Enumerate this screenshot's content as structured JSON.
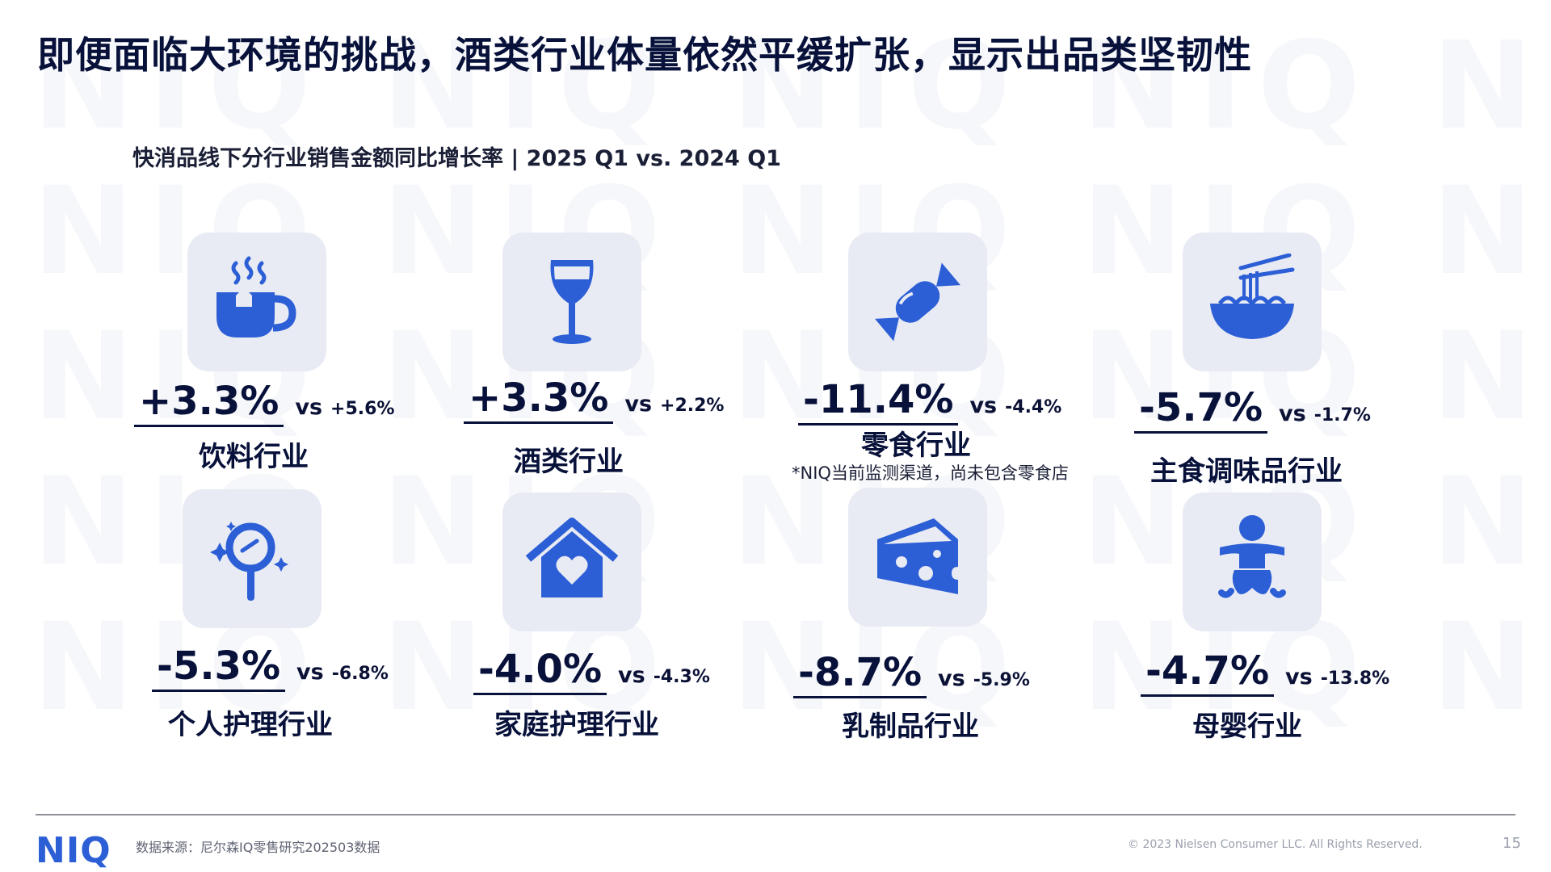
{
  "watermark": {
    "text": "NIQ NIQ NIQ NIQ NIQ"
  },
  "title": "即便面临大环境的挑战，酒类行业体量依然平缓扩张，显示出品类坚韧性",
  "subtitle": "快消品线下分行业销售金额同比增长率 | 2025 Q1 vs. 2024 Q1",
  "categories": [
    {
      "icon": "coffee-cup-icon",
      "value": "+3.3%",
      "vs": "vs",
      "prev": "+5.6%",
      "label": "饮料行业"
    },
    {
      "icon": "wine-glass-icon",
      "value": "+3.3%",
      "vs": "vs",
      "prev": "+2.2%",
      "label": "酒类行业"
    },
    {
      "icon": "candy-icon",
      "value": "-11.4%",
      "vs": "vs",
      "prev": "-4.4%",
      "label": "零食行业",
      "note": "*NIQ当前监测渠道，尚未包含零食店"
    },
    {
      "icon": "noodle-bowl-icon",
      "value": "-5.7%",
      "vs": "vs",
      "prev": "-1.7%",
      "label": "主食调味品行业"
    },
    {
      "icon": "cleaning-brush-icon",
      "value": "-5.3%",
      "vs": "vs",
      "prev": "-6.8%",
      "label": "个人护理行业"
    },
    {
      "icon": "house-heart-icon",
      "value": "-4.0%",
      "vs": "vs",
      "prev": "-4.3%",
      "label": "家庭护理行业"
    },
    {
      "icon": "cheese-icon",
      "value": "-8.7%",
      "vs": "vs",
      "prev": "-5.9%",
      "label": "乳制品行业"
    },
    {
      "icon": "baby-icon",
      "value": "-4.7%",
      "vs": "vs",
      "prev": "-13.8%",
      "label": "母婴行业"
    }
  ],
  "footer": {
    "logo": "NIQ",
    "source": "数据来源：尼尔森IQ零售研究202503数据",
    "copyright": "© 2023 Nielsen Consumer LLC. All Rights Reserved.",
    "page": "15"
  },
  "colors": {
    "accent": "#2c5ed6",
    "iconBg": "#e8ebf3",
    "text": "#07113a"
  }
}
